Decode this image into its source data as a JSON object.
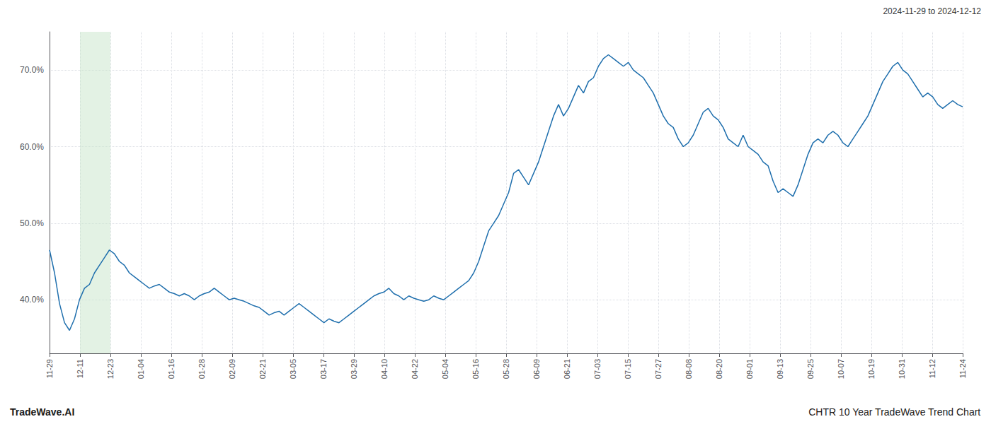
{
  "chart_data": {
    "type": "line",
    "annotations": [
      "2024-11-29 to 2024-12-12",
      "TradeWave.AI",
      "CHTR 10 Year TradeWave Trend Chart"
    ],
    "color": "#1f6fad",
    "grid": true,
    "highlight": {
      "x": [
        6.1,
        12.2
      ],
      "color": "#c8e6c9"
    },
    "xlim": [
      0,
      183
    ],
    "xticks": [
      {
        "value": 0,
        "label": "11-29"
      },
      {
        "value": 6.1,
        "label": "12-11"
      },
      {
        "value": 12.2,
        "label": "12-23"
      },
      {
        "value": 18.3,
        "label": "01-04"
      },
      {
        "value": 24.4,
        "label": "01-16"
      },
      {
        "value": 30.5,
        "label": "01-28"
      },
      {
        "value": 36.6,
        "label": "02-09"
      },
      {
        "value": 42.7,
        "label": "02-21"
      },
      {
        "value": 48.8,
        "label": "03-05"
      },
      {
        "value": 54.9,
        "label": "03-17"
      },
      {
        "value": 61,
        "label": "03-29"
      },
      {
        "value": 67.1,
        "label": "04-10"
      },
      {
        "value": 73.2,
        "label": "04-22"
      },
      {
        "value": 79.3,
        "label": "05-04"
      },
      {
        "value": 85.4,
        "label": "05-16"
      },
      {
        "value": 91.5,
        "label": "05-28"
      },
      {
        "value": 97.6,
        "label": "06-09"
      },
      {
        "value": 103.7,
        "label": "06-21"
      },
      {
        "value": 109.8,
        "label": "07-03"
      },
      {
        "value": 115.9,
        "label": "07-15"
      },
      {
        "value": 122,
        "label": "07-27"
      },
      {
        "value": 128.1,
        "label": "08-08"
      },
      {
        "value": 134.2,
        "label": "08-20"
      },
      {
        "value": 140.3,
        "label": "09-01"
      },
      {
        "value": 146.4,
        "label": "09-13"
      },
      {
        "value": 152.5,
        "label": "09-25"
      },
      {
        "value": 158.6,
        "label": "10-07"
      },
      {
        "value": 164.7,
        "label": "10-19"
      },
      {
        "value": 170.8,
        "label": "10-31"
      },
      {
        "value": 176.9,
        "label": "11-12"
      },
      {
        "value": 183,
        "label": "11-24"
      }
    ],
    "ylim": [
      33,
      75
    ],
    "yticks": [
      {
        "value": 40.0,
        "label": "40.0%"
      },
      {
        "value": 50.0,
        "label": "50.0%"
      },
      {
        "value": 60.0,
        "label": "60.0%"
      },
      {
        "value": 70.0,
        "label": "70.0%"
      }
    ],
    "x": [
      0,
      1,
      2,
      3,
      4,
      5,
      6,
      7,
      8,
      9,
      10,
      11,
      12,
      13,
      14,
      15,
      16,
      17,
      18,
      19,
      20,
      21,
      22,
      23,
      24,
      25,
      26,
      27,
      28,
      29,
      30,
      31,
      32,
      33,
      34,
      35,
      36,
      37,
      38,
      39,
      40,
      41,
      42,
      43,
      44,
      45,
      46,
      47,
      48,
      49,
      50,
      51,
      52,
      53,
      54,
      55,
      56,
      57,
      58,
      59,
      60,
      61,
      62,
      63,
      64,
      65,
      66,
      67,
      68,
      69,
      70,
      71,
      72,
      73,
      74,
      75,
      76,
      77,
      78,
      79,
      80,
      81,
      82,
      83,
      84,
      85,
      86,
      87,
      88,
      89,
      90,
      91,
      92,
      93,
      94,
      95,
      96,
      97,
      98,
      99,
      100,
      101,
      102,
      103,
      104,
      105,
      106,
      107,
      108,
      109,
      110,
      111,
      112,
      113,
      114,
      115,
      116,
      117,
      118,
      119,
      120,
      121,
      122,
      123,
      124,
      125,
      126,
      127,
      128,
      129,
      130,
      131,
      132,
      133,
      134,
      135,
      136,
      137,
      138,
      139,
      140,
      141,
      142,
      143,
      144,
      145,
      146,
      147,
      148,
      149,
      150,
      151,
      152,
      153,
      154,
      155,
      156,
      157,
      158,
      159,
      160,
      161,
      162,
      163,
      164,
      165,
      166,
      167,
      168,
      169,
      170,
      171,
      172,
      173,
      174,
      175,
      176,
      177,
      178,
      179,
      180,
      181,
      182,
      183
    ],
    "values": [
      46.5,
      43.5,
      39.5,
      37.0,
      36.0,
      37.5,
      40.0,
      41.5,
      42.0,
      43.5,
      44.5,
      45.5,
      46.5,
      46.0,
      45.0,
      44.5,
      43.5,
      43.0,
      42.5,
      42.0,
      41.5,
      41.8,
      42.0,
      41.5,
      41.0,
      40.8,
      40.5,
      40.8,
      40.5,
      40.0,
      40.5,
      40.8,
      41.0,
      41.5,
      41.0,
      40.5,
      40.0,
      40.2,
      40.0,
      39.8,
      39.5,
      39.2,
      39.0,
      38.5,
      38.0,
      38.3,
      38.5,
      38.0,
      38.5,
      39.0,
      39.5,
      39.0,
      38.5,
      38.0,
      37.5,
      37.0,
      37.5,
      37.2,
      37.0,
      37.5,
      38.0,
      38.5,
      39.0,
      39.5,
      40.0,
      40.5,
      40.8,
      41.0,
      41.5,
      40.8,
      40.5,
      40.0,
      40.5,
      40.2,
      40.0,
      39.8,
      40.0,
      40.5,
      40.2,
      40.0,
      40.5,
      41.0,
      41.5,
      42.0,
      42.5,
      43.5,
      45.0,
      47.0,
      49.0,
      50.0,
      51.0,
      52.5,
      54.0,
      56.5,
      57.0,
      56.0,
      55.0,
      56.5,
      58.0,
      60.0,
      62.0,
      64.0,
      65.5,
      64.0,
      65.0,
      66.5,
      68.0,
      67.0,
      68.5,
      69.0,
      70.5,
      71.5,
      72.0,
      71.5,
      71.0,
      70.5,
      71.0,
      70.0,
      69.5,
      69.0,
      68.0,
      67.0,
      65.5,
      64.0,
      63.0,
      62.5,
      61.0,
      60.0,
      60.5,
      61.5,
      63.0,
      64.5,
      65.0,
      64.0,
      63.5,
      62.5,
      61.0,
      60.5,
      60.0,
      61.5,
      60.0,
      59.5,
      59.0,
      58.0,
      57.5,
      55.5,
      54.0,
      54.5,
      54.0,
      53.5,
      55.0,
      57.0,
      59.0,
      60.5,
      61.0,
      60.5,
      61.5,
      62.0,
      61.5,
      60.5,
      60.0,
      61.0,
      62.0,
      63.0,
      64.0,
      65.5,
      67.0,
      68.5,
      69.5,
      70.5,
      71.0,
      70.0,
      69.5,
      68.5,
      67.5,
      66.5,
      67.0,
      66.5,
      65.5,
      65.0,
      65.5,
      66.0,
      65.5,
      65.2
    ]
  }
}
